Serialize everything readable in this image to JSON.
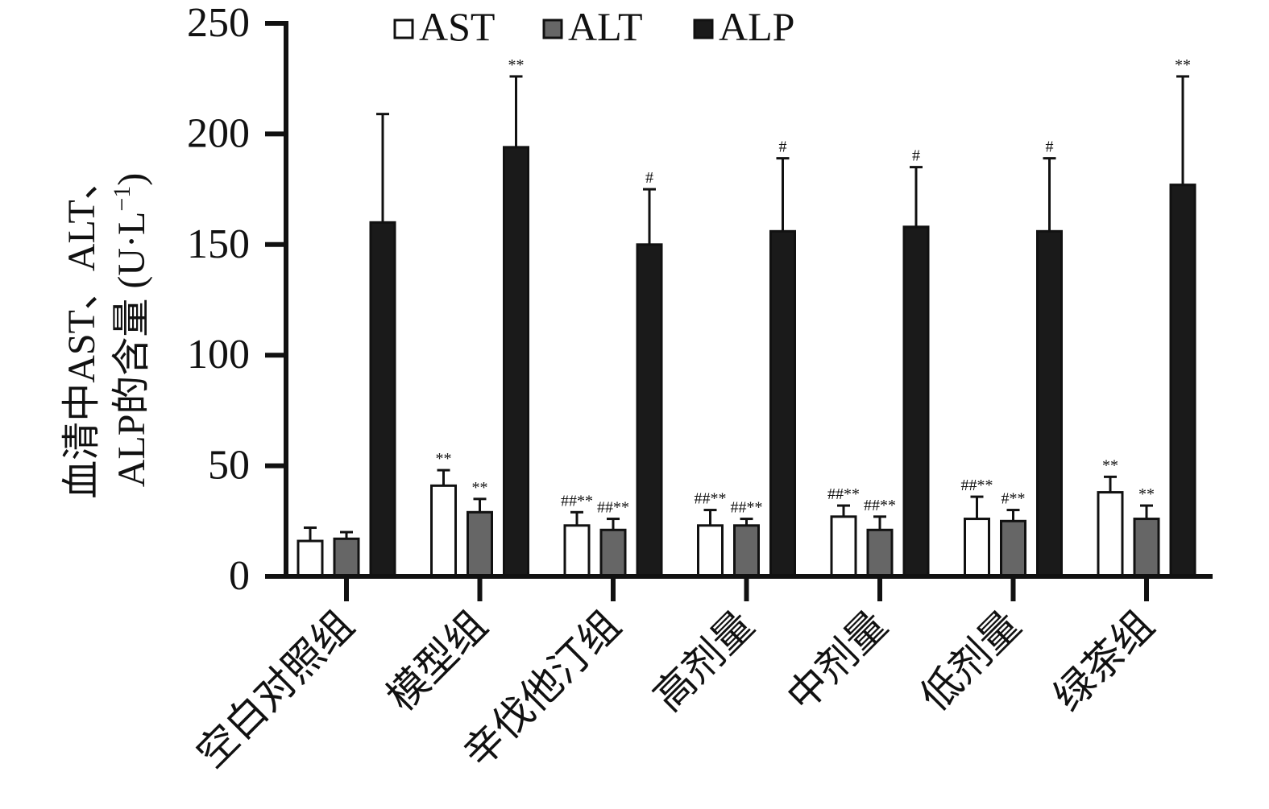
{
  "chart_data": {
    "type": "bar",
    "ylabel_line1": "血清中AST、ALT、",
    "ylabel_line2": "ALP的含量 (U·L",
    "ylabel_sup": "−1",
    "ylabel_close": ")",
    "ylim": [
      0,
      250
    ],
    "yticks": [
      "0",
      "50",
      "100",
      "150",
      "200",
      "250"
    ],
    "ytick_values": [
      0,
      50,
      100,
      150,
      200,
      250
    ],
    "categories": [
      "空白对照组",
      "模型组",
      "辛伐他汀组",
      "高剂量",
      "中剂量",
      "低剂量",
      "绿茶组"
    ],
    "legend_position": "top",
    "series": [
      {
        "name": "AST",
        "color": "#ffffff",
        "values": [
          16,
          41,
          23,
          23,
          27,
          26,
          38
        ],
        "errors": [
          6,
          7,
          6,
          7,
          5,
          10,
          7
        ],
        "sig": [
          "",
          "**",
          "##**",
          "##**",
          "##**",
          "##**",
          "**"
        ]
      },
      {
        "name": "ALT",
        "color": "#666666",
        "values": [
          17,
          29,
          21,
          23,
          21,
          25,
          26
        ],
        "errors": [
          3,
          6,
          5,
          3,
          6,
          5,
          6
        ],
        "sig": [
          "",
          "**",
          "##**",
          "##**",
          "##**",
          "#**",
          "**"
        ]
      },
      {
        "name": "ALP",
        "color": "#1a1a1a",
        "values": [
          160,
          194,
          150,
          156,
          158,
          156,
          177
        ],
        "errors": [
          49,
          32,
          25,
          33,
          27,
          33,
          49
        ],
        "sig": [
          "",
          "**",
          "#",
          "#",
          "#",
          "#",
          "**"
        ]
      }
    ]
  }
}
